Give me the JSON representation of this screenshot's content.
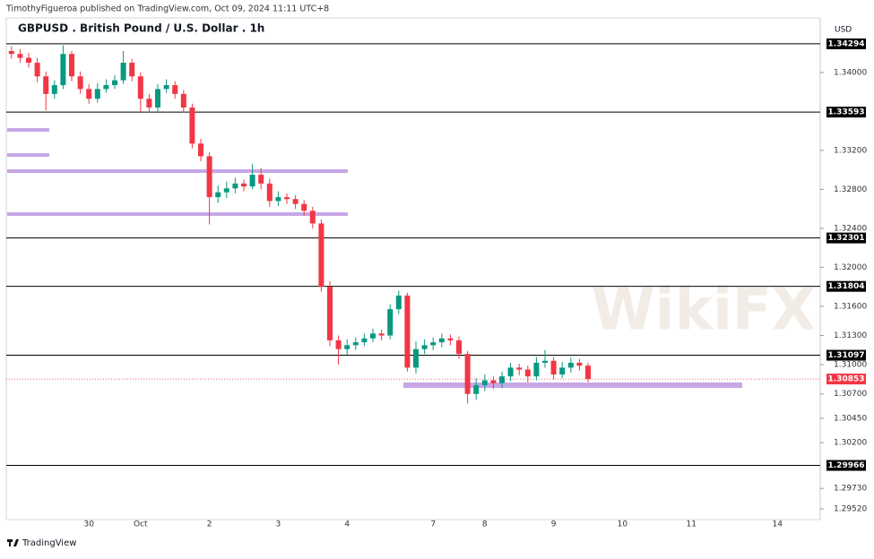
{
  "header": {
    "note": "TimothyFigueroa published on TradingView.com, Oct 09, 2024 11:11 UTC+8"
  },
  "footer": {
    "brand": "TradingView"
  },
  "watermark": "WikiFX",
  "chart_data": {
    "type": "candlestick",
    "title": "GBPUSD . British Pound / U.S. Dollar . 1h",
    "currency": "USD",
    "up_color": "#089981",
    "down_color": "#f23645",
    "level_color": "#000000",
    "categories": [
      null,
      null,
      null,
      null,
      null,
      null,
      null,
      null,
      null,
      "30",
      null,
      null,
      null,
      null,
      null,
      "Oct",
      null,
      null,
      null,
      null,
      null,
      null,
      null,
      "2",
      null,
      null,
      null,
      null,
      null,
      null,
      null,
      "3",
      null,
      null,
      null,
      null,
      null,
      null,
      null,
      "4",
      null,
      null,
      null,
      null,
      null,
      null,
      null,
      null,
      null,
      "7",
      null,
      null,
      null,
      null,
      null,
      "8",
      null,
      null,
      null,
      null,
      null,
      null,
      null,
      "9",
      null,
      null,
      null,
      null,
      null,
      null,
      null,
      "10",
      null,
      null,
      null,
      null,
      null,
      null,
      null,
      "11",
      null,
      null,
      null,
      null,
      null,
      null,
      null,
      null,
      null,
      "14"
    ],
    "open": [
      1.3422,
      1.3419,
      1.3415,
      1.341,
      1.3396,
      1.3378,
      1.3387,
      1.3419,
      1.3396,
      1.3383,
      1.3373,
      1.3383,
      1.3387,
      1.3392,
      1.341,
      1.3396,
      1.3373,
      1.3364,
      1.3383,
      1.3387,
      1.3378,
      1.3364,
      1.3327,
      1.3314,
      1.3272,
      1.3277,
      1.3281,
      1.3286,
      1.3283,
      1.3295,
      1.3286,
      1.3268,
      1.3272,
      1.327,
      1.3265,
      1.3258,
      1.3245,
      1.318,
      1.3125,
      1.3116,
      1.312,
      1.3123,
      1.3127,
      1.3132,
      1.313,
      1.3157,
      1.3171,
      1.3097,
      1.3116,
      1.312,
      1.3123,
      1.3127,
      1.3125,
      1.3111,
      1.307,
      1.3079,
      1.3084,
      1.3081,
      1.3088,
      1.3097,
      1.3095,
      1.3088,
      1.3102,
      1.3104,
      1.309,
      1.3097,
      1.3102,
      1.3099,
      null,
      null,
      null,
      null,
      null,
      null,
      null,
      null,
      null,
      null,
      null,
      null,
      null,
      null,
      null,
      null,
      null,
      null,
      null,
      null,
      null,
      null
    ],
    "high": [
      1.3427,
      1.3424,
      1.342,
      1.3415,
      1.3401,
      1.3392,
      1.3428,
      1.3422,
      1.3401,
      1.3388,
      1.3389,
      1.3393,
      1.3397,
      1.3422,
      1.3414,
      1.34,
      1.3378,
      1.3388,
      1.3393,
      1.3391,
      1.3382,
      1.3368,
      1.3332,
      1.3318,
      1.3284,
      1.3288,
      1.3292,
      1.329,
      1.3306,
      1.3302,
      1.3291,
      1.3278,
      1.3276,
      1.3274,
      1.3269,
      1.3262,
      1.3249,
      1.3186,
      1.313,
      1.3126,
      1.3128,
      1.3132,
      1.3137,
      1.3136,
      1.3162,
      1.3176,
      1.3174,
      1.3124,
      1.3126,
      1.3128,
      1.3132,
      1.3131,
      1.3129,
      1.3114,
      1.3086,
      1.309,
      1.3088,
      1.3093,
      1.3102,
      1.3101,
      1.3099,
      1.3108,
      1.3115,
      1.3108,
      1.3103,
      1.3107,
      1.3106,
      1.3102,
      null,
      null,
      null,
      null,
      null,
      null,
      null,
      null,
      null,
      null,
      null,
      null,
      null,
      null,
      null,
      null,
      null,
      null,
      null,
      null,
      null,
      null
    ],
    "low": [
      1.3414,
      1.341,
      1.3405,
      1.339,
      1.3361,
      1.3373,
      1.3383,
      1.3391,
      1.3378,
      1.3368,
      1.3369,
      1.3379,
      1.3383,
      1.3388,
      1.3391,
      1.336,
      1.3359,
      1.336,
      1.3379,
      1.3373,
      1.3359,
      1.3322,
      1.3309,
      1.3244,
      1.3266,
      1.3271,
      1.3276,
      1.3278,
      1.328,
      1.328,
      1.3262,
      1.3263,
      1.3265,
      1.326,
      1.3253,
      1.324,
      1.3175,
      1.3119,
      1.31,
      1.311,
      1.3115,
      1.3119,
      1.3123,
      1.3125,
      1.3126,
      1.3152,
      1.3093,
      1.3091,
      1.3111,
      1.3115,
      1.3118,
      1.312,
      1.3106,
      1.306,
      1.3064,
      1.3073,
      1.3075,
      1.3076,
      1.3083,
      1.3089,
      1.3082,
      1.3084,
      1.3097,
      1.3085,
      1.3086,
      1.3092,
      1.3094,
      1.3082,
      null,
      null,
      null,
      null,
      null,
      null,
      null,
      null,
      null,
      null,
      null,
      null,
      null,
      null,
      null,
      null,
      null,
      null,
      null,
      null,
      null,
      null
    ],
    "close": [
      1.3419,
      1.3415,
      1.341,
      1.3396,
      1.3378,
      1.3387,
      1.3419,
      1.3396,
      1.3383,
      1.3373,
      1.3383,
      1.3387,
      1.3392,
      1.341,
      1.3396,
      1.3373,
      1.3364,
      1.3383,
      1.3387,
      1.3378,
      1.3364,
      1.3327,
      1.3314,
      1.3272,
      1.3277,
      1.3281,
      1.3286,
      1.3283,
      1.3295,
      1.3286,
      1.3268,
      1.3272,
      1.327,
      1.3265,
      1.3258,
      1.3245,
      1.318,
      1.3125,
      1.3116,
      1.312,
      1.3123,
      1.3127,
      1.3132,
      1.313,
      1.3157,
      1.3171,
      1.3097,
      1.3116,
      1.312,
      1.3123,
      1.3127,
      1.3125,
      1.3111,
      1.307,
      1.3079,
      1.3084,
      1.3081,
      1.3088,
      1.3097,
      1.3095,
      1.3088,
      1.3102,
      1.3104,
      1.309,
      1.3097,
      1.3102,
      1.3099,
      1.30853,
      null,
      null,
      null,
      null,
      null,
      null,
      null,
      null,
      null,
      null,
      null,
      null,
      null,
      null,
      null,
      null,
      null,
      null,
      null,
      null,
      null,
      null
    ],
    "ylim": [
      1.2941,
      1.3456
    ],
    "yticks": [
      {
        "value": 1.34,
        "label": "1.34000"
      },
      {
        "value": 1.332,
        "label": "1.33200"
      },
      {
        "value": 1.328,
        "label": "1.32800"
      },
      {
        "value": 1.324,
        "label": "1.32400"
      },
      {
        "value": 1.32,
        "label": "1.32000"
      },
      {
        "value": 1.316,
        "label": "1.31600"
      },
      {
        "value": 1.313,
        "label": "1.31300"
      },
      {
        "value": 1.31,
        "label": "1.31000"
      },
      {
        "value": 1.307,
        "label": "1.30700"
      },
      {
        "value": 1.3045,
        "label": "1.30450"
      },
      {
        "value": 1.302,
        "label": "1.30200"
      },
      {
        "value": 1.2973,
        "label": "1.29730"
      },
      {
        "value": 1.2952,
        "label": "1.29520"
      }
    ],
    "levels": [
      1.34294,
      1.33593,
      1.32301,
      1.31804,
      1.31097,
      1.29966
    ],
    "last_price": 1.30853
  }
}
